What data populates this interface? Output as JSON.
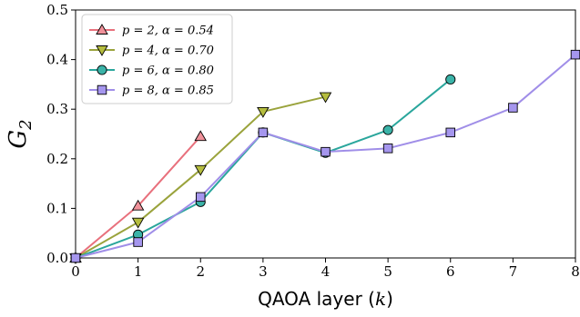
{
  "chart_data": {
    "type": "line",
    "title": "",
    "xlabel": "QAOA layer (k)",
    "ylabel": "G2",
    "ylabel_main": "G",
    "ylabel_sub": "2",
    "xlim": [
      0,
      8
    ],
    "ylim": [
      0.0,
      0.5
    ],
    "xticks": [
      0,
      1,
      2,
      3,
      4,
      5,
      6,
      7,
      8
    ],
    "yticks": [
      0.0,
      0.1,
      0.2,
      0.3,
      0.4,
      0.5
    ],
    "ytick_labels": [
      "0.0",
      "0.1",
      "0.2",
      "0.3",
      "0.4",
      "0.5"
    ],
    "grid": false,
    "legend_position": "upper-left",
    "series": [
      {
        "name": "p = 2, α = 0.54",
        "marker": "triangle-up",
        "color": "#e8707c",
        "marker_fill": "#f0919a",
        "x": [
          0,
          1,
          2
        ],
        "y": [
          0.0,
          0.105,
          0.245
        ]
      },
      {
        "name": "p = 4, α = 0.70",
        "marker": "triangle-down",
        "color": "#9aa33c",
        "marker_fill": "#b5bd3e",
        "x": [
          0,
          1,
          2,
          3,
          4
        ],
        "y": [
          0.0,
          0.072,
          0.178,
          0.295,
          0.325
        ]
      },
      {
        "name": "p = 6, α = 0.80",
        "marker": "circle",
        "color": "#2aa69c",
        "marker_fill": "#3bb3a8",
        "x": [
          0,
          1,
          2,
          3,
          4,
          5,
          6
        ],
        "y": [
          0.0,
          0.047,
          0.113,
          0.253,
          0.212,
          0.258,
          0.36
        ]
      },
      {
        "name": "p = 8, α = 0.85",
        "marker": "square",
        "color": "#a08ee8",
        "marker_fill": "#a596ee",
        "x": [
          0,
          1,
          2,
          3,
          4,
          5,
          6,
          7,
          8
        ],
        "y": [
          0.0,
          0.032,
          0.123,
          0.253,
          0.214,
          0.221,
          0.253,
          0.303,
          0.41
        ]
      }
    ]
  }
}
